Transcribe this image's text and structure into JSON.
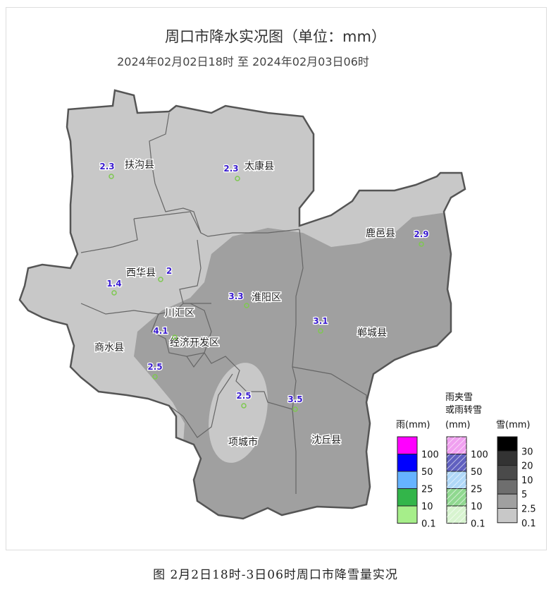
{
  "title": "周口市降水实况图（单位：mm）",
  "subtitle": "2024年02月02日18时  至  2024年02月03日06时",
  "caption": "图 2月2日18时-3日06时周口市降雪量实况",
  "colors": {
    "snow_0_1": "#c8c8c8",
    "snow_2_5": "#a0a0a0",
    "border": "#555555",
    "station": "#7ec850",
    "value_text": "#3a1ccf"
  },
  "counties": [
    {
      "name": "扶沟县",
      "value": "2.3"
    },
    {
      "name": "太康县",
      "value": "2.3"
    },
    {
      "name": "鹿邑县",
      "value": "2.9"
    },
    {
      "name": "西华县",
      "value": "2"
    },
    {
      "name": "淮阳区",
      "value": "3.3"
    },
    {
      "name": "川汇区",
      "value": ""
    },
    {
      "name": "经济开发区",
      "value": "4.1"
    },
    {
      "name": "郸城县",
      "value": "3.1"
    },
    {
      "name": "商水县",
      "value": "2.5"
    },
    {
      "name": "项城市",
      "value": "2.5"
    },
    {
      "name": "沈丘县",
      "value": "3.5"
    }
  ],
  "extra_stations": [
    {
      "value": "1.4"
    }
  ],
  "legend": {
    "rain": {
      "title": "雨(mm)",
      "colors": [
        "#ff00ff",
        "#0000ff",
        "#66b3ff",
        "#33b54a",
        "#a6ee8a"
      ],
      "ticks": [
        "100",
        "50",
        "25",
        "10",
        "0.1"
      ]
    },
    "mixed": {
      "title1": "雨夹雪",
      "title2": "或雨转雪",
      "title3": "(mm)",
      "colors": [
        "#f0a0f0",
        "#6060c0",
        "#b0d8f8",
        "#90d890",
        "#d8f4d0"
      ],
      "ticks": [
        "100",
        "50",
        "25",
        "10",
        "0.1"
      ]
    },
    "snow": {
      "title": "雪(mm)",
      "colors": [
        "#000000",
        "#333333",
        "#4a4a4a",
        "#6e6e6e",
        "#a0a0a0",
        "#c8c8c8"
      ],
      "ticks": [
        "30",
        "20",
        "10",
        "5",
        "2.5",
        "0.1"
      ]
    }
  }
}
